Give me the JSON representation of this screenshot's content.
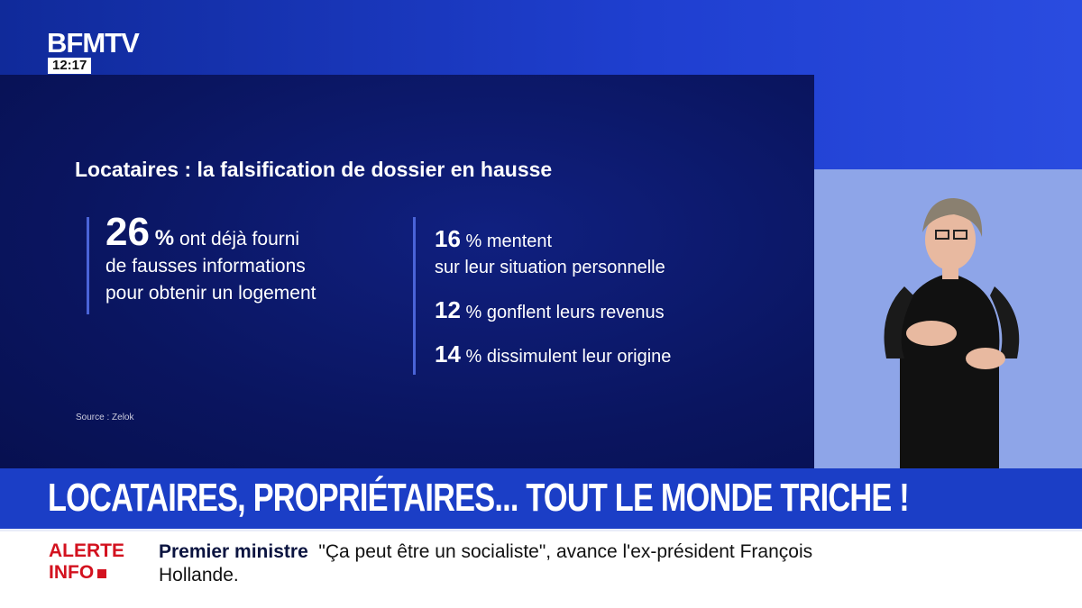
{
  "channel": {
    "logo": "BFMTV",
    "time": "12:17"
  },
  "infographic": {
    "title": "Locataires : la falsification de dossier en hausse",
    "main_stat": {
      "value": "26",
      "unit": "%",
      "text_line1": "ont déjà fourni",
      "text_line2": "de fausses informations",
      "text_line3": "pour obtenir un logement"
    },
    "stats": [
      {
        "value": "16",
        "unit": "%",
        "text": "mentent",
        "text2": "sur leur situation personnelle"
      },
      {
        "value": "12",
        "unit": "%",
        "text": "gonflent leurs revenus"
      },
      {
        "value": "14",
        "unit": "%",
        "text": "dissimulent leur origine"
      }
    ],
    "source": "Source : Zelok"
  },
  "banner": {
    "headline": "LOCATAIRES, PROPRIÉTAIRES... TOUT LE MONDE TRICHE !"
  },
  "ticker": {
    "label_line1": "ALERTE",
    "label_line2": "INFO",
    "topic": "Premier ministre",
    "text": "\"Ça peut être un socialiste\", avance l'ex-président François Hollande."
  },
  "colors": {
    "brand_blue": "#1b3ec6",
    "alert_red": "#d3121f",
    "panel": "#0a1560"
  }
}
